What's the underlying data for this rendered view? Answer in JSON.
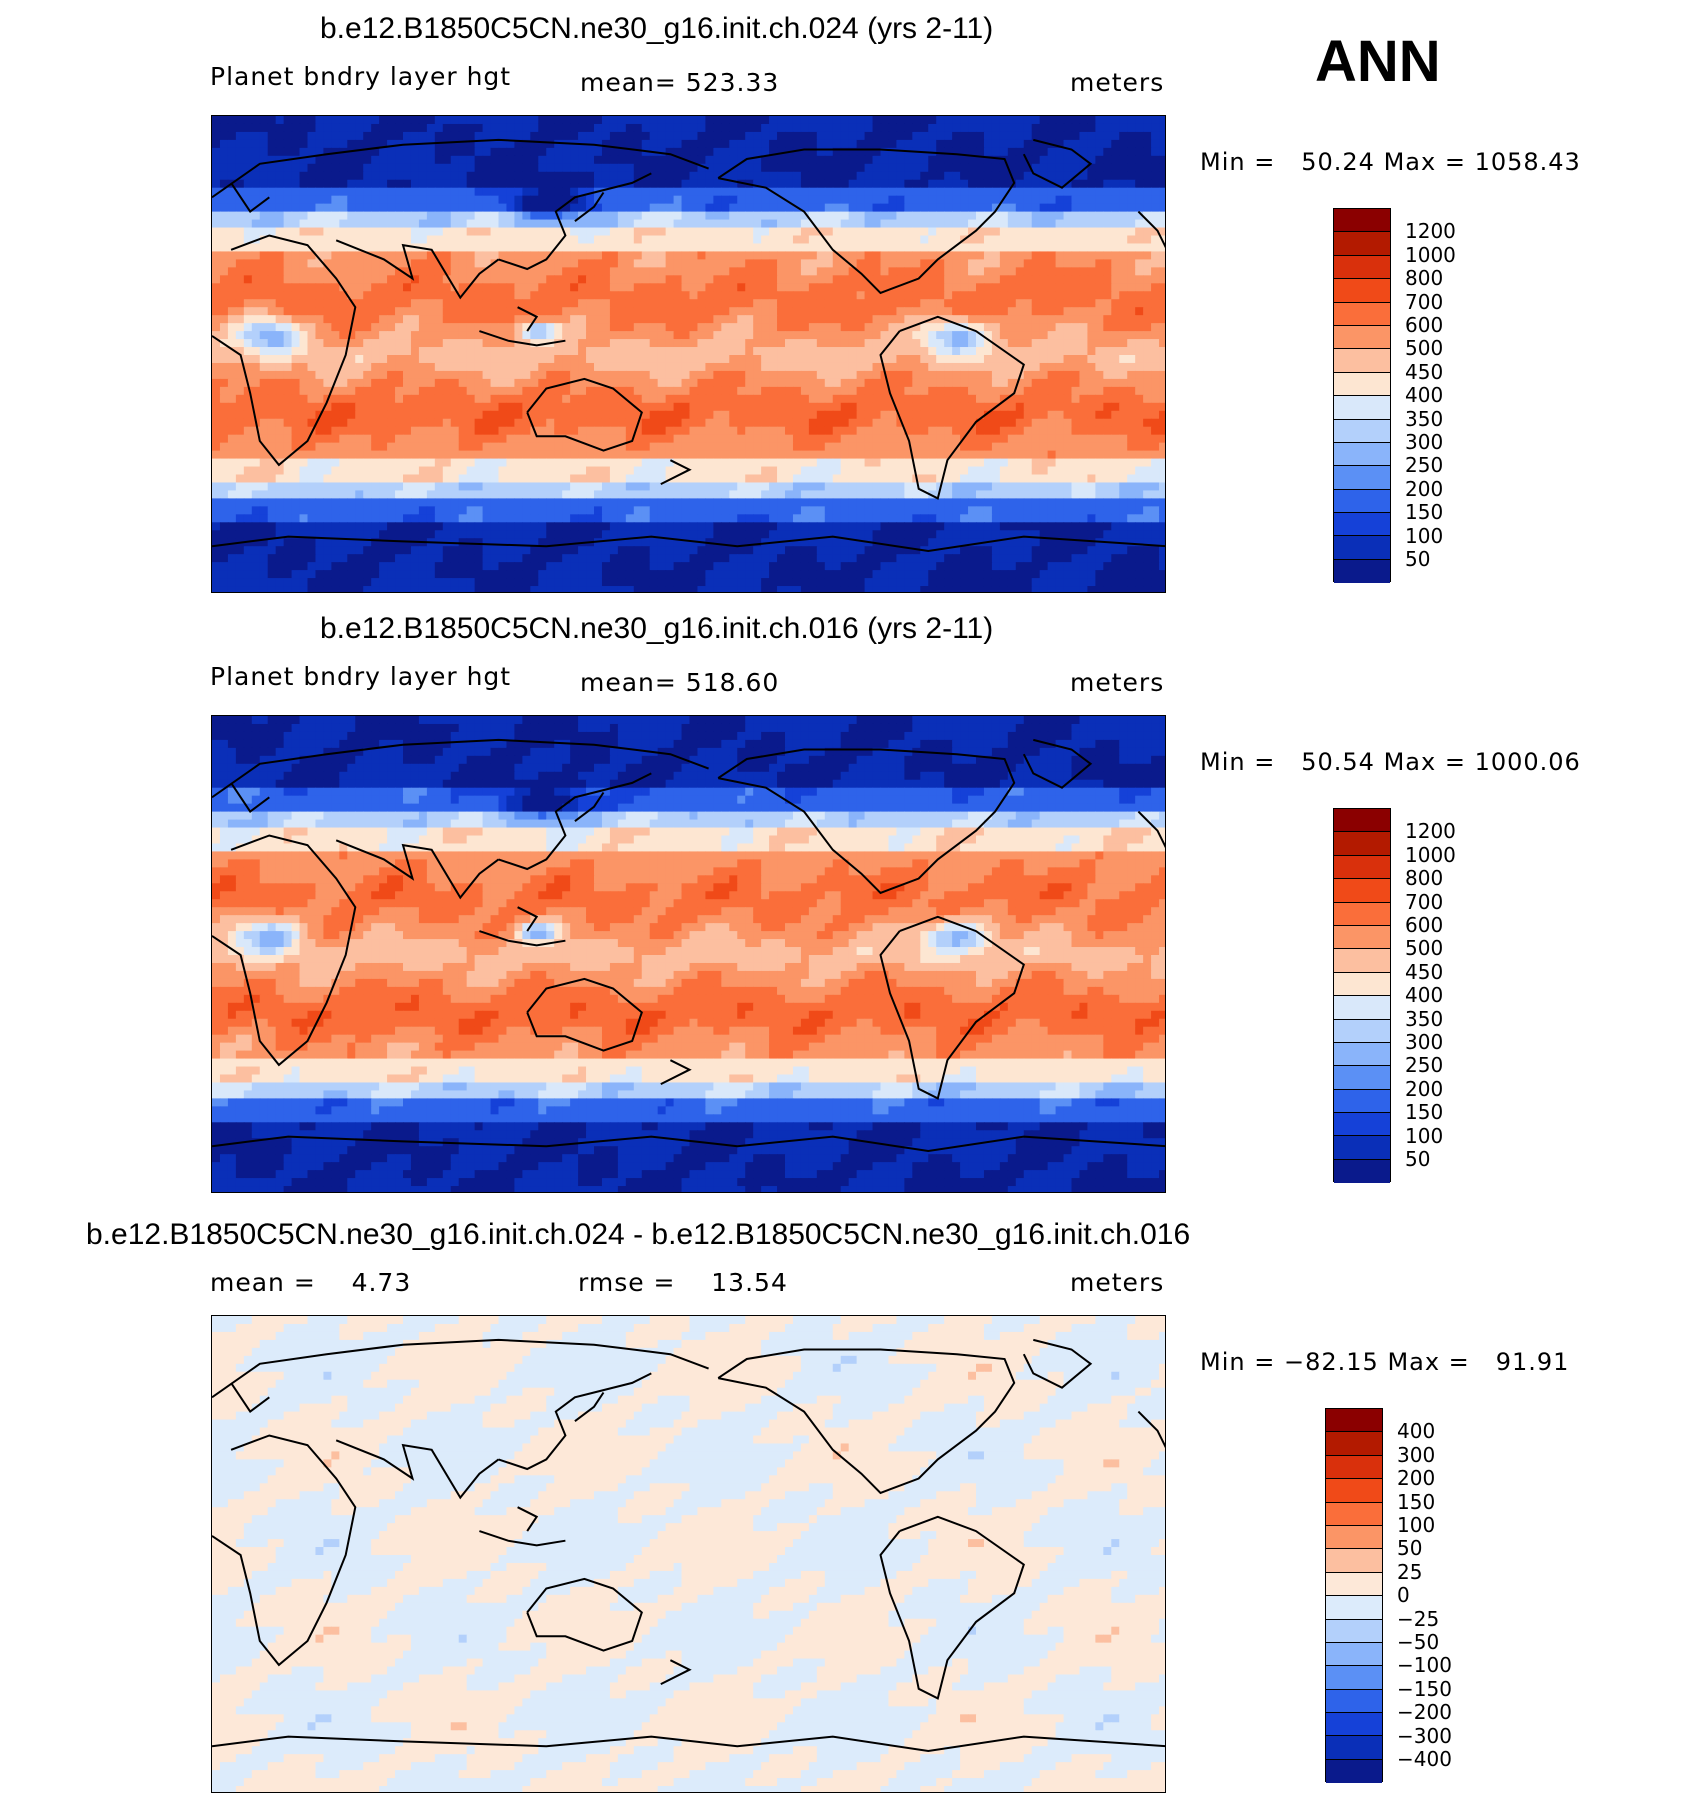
{
  "season": "ANN",
  "panels": [
    {
      "title": "b.e12.B1850C5CN.ne30_g16.init.ch.024 (yrs 2-11)",
      "left": "Planet bndry layer hgt",
      "center": "mean= 523.33",
      "right": "meters",
      "min_label": "Min =",
      "min_value": "50.24",
      "max_label": "Max =",
      "max_value": "1058.43",
      "field": "abs",
      "colorbar_labels": [
        "1200",
        "1000",
        "800",
        "700",
        "600",
        "500",
        "450",
        "400",
        "350",
        "300",
        "250",
        "200",
        "150",
        "100",
        "50"
      ]
    },
    {
      "title": "b.e12.B1850C5CN.ne30_g16.init.ch.016 (yrs 2-11)",
      "left": "Planet bndry layer hgt",
      "center": "mean= 518.60",
      "right": "meters",
      "min_label": "Min =",
      "min_value": "50.54",
      "max_label": "Max =",
      "max_value": "1000.06",
      "field": "abs",
      "colorbar_labels": [
        "1200",
        "1000",
        "800",
        "700",
        "600",
        "500",
        "450",
        "400",
        "350",
        "300",
        "250",
        "200",
        "150",
        "100",
        "50"
      ]
    },
    {
      "title": "b.e12.B1850C5CN.ne30_g16.init.ch.024 - b.e12.B1850C5CN.ne30_g16.init.ch.016",
      "left": "mean =    4.73",
      "center": "rmse =    13.54",
      "right": "meters",
      "min_label": "Min =",
      "min_value": "−82.15",
      "max_label": "Max =",
      "max_value": "91.91",
      "field": "diff",
      "colorbar_labels": [
        "400",
        "300",
        "200",
        "150",
        "100",
        "50",
        "25",
        "0",
        "−25",
        "−50",
        "−100",
        "−150",
        "−200",
        "−300",
        "−400"
      ]
    }
  ],
  "colors": {
    "abs_scale": [
      "#8b0000",
      "#b31a00",
      "#d9300c",
      "#f04a18",
      "#fa6e3a",
      "#fb9566",
      "#fcbfa0",
      "#fde6d2",
      "#d9e8fa",
      "#b3d0fb",
      "#8ab4fa",
      "#5b90f5",
      "#2e63ea",
      "#1541d8",
      "#0a2fb8",
      "#0a1a8c"
    ],
    "diff_scale": [
      "#8b0000",
      "#b31a00",
      "#d9300c",
      "#f04a18",
      "#fa6e3a",
      "#fb9566",
      "#fcbfa0",
      "#fde8d8",
      "#dcebfb",
      "#b3d0fb",
      "#8ab4fa",
      "#5b90f5",
      "#2e63ea",
      "#1541d8",
      "#0a2fb8",
      "#0a1a8c"
    ],
    "coast": "#000000"
  }
}
